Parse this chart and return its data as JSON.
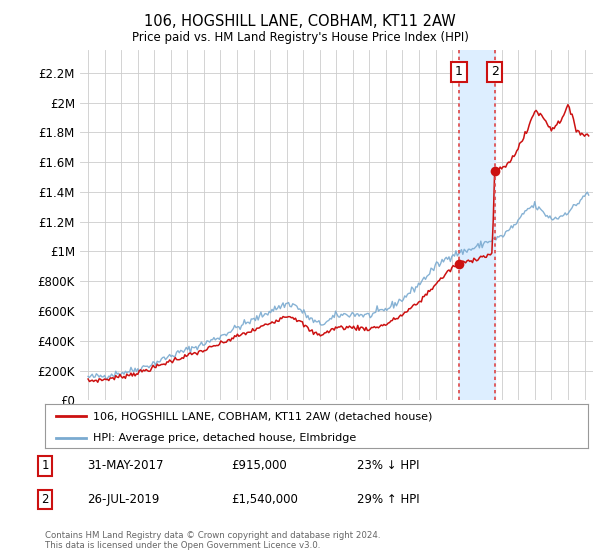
{
  "title": "106, HOGSHILL LANE, COBHAM, KT11 2AW",
  "subtitle": "Price paid vs. HM Land Registry's House Price Index (HPI)",
  "ylabel_ticks": [
    "£0",
    "£200K",
    "£400K",
    "£600K",
    "£800K",
    "£1M",
    "£1.2M",
    "£1.4M",
    "£1.6M",
    "£1.8M",
    "£2M",
    "£2.2M"
  ],
  "ytick_values": [
    0,
    200000,
    400000,
    600000,
    800000,
    1000000,
    1200000,
    1400000,
    1600000,
    1800000,
    2000000,
    2200000
  ],
  "ylim": [
    0,
    2350000
  ],
  "xlim_start": 1994.5,
  "xlim_end": 2025.5,
  "hpi_color": "#7aaad0",
  "price_color": "#cc1111",
  "vline_color": "#dd4444",
  "transaction1_x": 2017.42,
  "transaction1_y": 915000,
  "transaction2_x": 2019.57,
  "transaction2_y": 1540000,
  "legend_line1": "106, HOGSHILL LANE, COBHAM, KT11 2AW (detached house)",
  "legend_line2": "HPI: Average price, detached house, Elmbridge",
  "table_row1": [
    "1",
    "31-MAY-2017",
    "£915,000",
    "23% ↓ HPI"
  ],
  "table_row2": [
    "2",
    "26-JUL-2019",
    "£1,540,000",
    "29% ↑ HPI"
  ],
  "footnote": "Contains HM Land Registry data © Crown copyright and database right 2024.\nThis data is licensed under the Open Government Licence v3.0.",
  "background_color": "#ffffff",
  "grid_color": "#cccccc",
  "shade_color": "#ddeeff"
}
